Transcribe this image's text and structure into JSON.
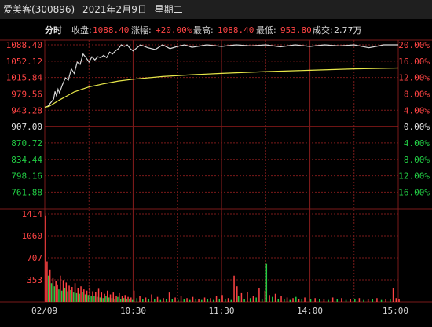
{
  "header": {
    "stock": "爱美客(300896)",
    "date": "2021年2月9日",
    "weekday": "星期二"
  },
  "info_bar": {
    "label": "分时",
    "close_label": "收盘:",
    "close_value": "1088.40",
    "change_label": "涨幅:",
    "change_value": "+20.00%",
    "high_label": "最高:",
    "high_value": "1088.40",
    "low_label": "最低:",
    "low_value": "953.80",
    "volume_label": "成交:",
    "volume_value": "2.77万"
  },
  "colors": {
    "price_line": "#d8d8d8",
    "avg_line": "#e8e84a",
    "up": "#ff4444",
    "down": "#22cc44",
    "neutral": "#e0e0e0",
    "grid": "#7a1a1a"
  },
  "chart_data": {
    "type": "line",
    "prev_close": 907.0,
    "price_axis": {
      "ylim": [
        743.4,
        1088.4
      ],
      "ticks": [
        "1088.40",
        "1052.12",
        "1015.84",
        "979.56",
        "943.28",
        "907.00",
        "870.72",
        "834.44",
        "798.16",
        "761.88"
      ],
      "tick_values": [
        1088.4,
        1052.12,
        1015.84,
        979.56,
        943.28,
        907.0,
        870.72,
        834.44,
        798.16,
        761.88
      ],
      "pct_ticks": [
        "20.00%",
        "16.00%",
        "12.00%",
        "8.00%",
        "4.00%",
        "0.00%",
        "4.00%",
        "8.00%",
        "12.00%",
        "16.00%"
      ]
    },
    "x_ticks": [
      "02/09",
      "10:30",
      "11:30",
      "14:00",
      "15:00"
    ],
    "x_tick_minutes": [
      0,
      60,
      120,
      180,
      240
    ],
    "series": [
      {
        "name": "price",
        "x": [
          0,
          2,
          4,
          6,
          7,
          8,
          9,
          10,
          12,
          14,
          16,
          18,
          20,
          22,
          24,
          26,
          28,
          30,
          32,
          34,
          36,
          38,
          40,
          42,
          44,
          46,
          48,
          50,
          52,
          54,
          56,
          58,
          60,
          65,
          70,
          75,
          80,
          85,
          90,
          95,
          100,
          110,
          120,
          130,
          140,
          150,
          160,
          170,
          180,
          190,
          200,
          210,
          220,
          225,
          230,
          235,
          240
        ],
        "values": [
          950,
          952,
          960,
          968,
          985,
          975,
          990,
          982,
          1000,
          1015,
          1010,
          1035,
          1025,
          1050,
          1045,
          1068,
          1060,
          1050,
          1062,
          1055,
          1062,
          1060,
          1065,
          1060,
          1072,
          1068,
          1075,
          1080,
          1088.4,
          1085,
          1088.4,
          1080,
          1075,
          1088.4,
          1082,
          1078,
          1088.4,
          1080,
          1085,
          1088.4,
          1083,
          1088.4,
          1085,
          1088.4,
          1086,
          1088.4,
          1084,
          1088.4,
          1085,
          1088.4,
          1086,
          1088.4,
          1082,
          1085,
          1088.4,
          1088.4,
          1088.4
        ]
      },
      {
        "name": "avg",
        "x": [
          0,
          3,
          6,
          10,
          15,
          20,
          30,
          40,
          50,
          60,
          80,
          100,
          120,
          150,
          180,
          210,
          240
        ],
        "values": [
          950,
          952,
          958,
          966,
          975,
          984,
          995,
          1002,
          1008,
          1012,
          1018,
          1022,
          1025,
          1029,
          1032,
          1035,
          1037
        ]
      }
    ],
    "volume": {
      "ylim": [
        0,
        1414
      ],
      "ticks": [
        "1414",
        "1060",
        "707",
        "353"
      ],
      "tick_values": [
        1414,
        1060,
        707,
        353
      ],
      "bars": [
        [
          0,
          1380,
          "u"
        ],
        [
          1,
          650,
          "u"
        ],
        [
          2,
          420,
          "d"
        ],
        [
          3,
          520,
          "u"
        ],
        [
          4,
          300,
          "d"
        ],
        [
          5,
          380,
          "u"
        ],
        [
          6,
          250,
          "d"
        ],
        [
          7,
          330,
          "u"
        ],
        [
          8,
          280,
          "u"
        ],
        [
          9,
          200,
          "d"
        ],
        [
          10,
          420,
          "u"
        ],
        [
          11,
          180,
          "d"
        ],
        [
          12,
          350,
          "u"
        ],
        [
          13,
          220,
          "d"
        ],
        [
          14,
          310,
          "u"
        ],
        [
          15,
          170,
          "d"
        ],
        [
          16,
          260,
          "u"
        ],
        [
          17,
          190,
          "d"
        ],
        [
          18,
          240,
          "u"
        ],
        [
          19,
          150,
          "d"
        ],
        [
          20,
          300,
          "u"
        ],
        [
          21,
          140,
          "d"
        ],
        [
          22,
          220,
          "u"
        ],
        [
          23,
          130,
          "d"
        ],
        [
          24,
          250,
          "u"
        ],
        [
          25,
          160,
          "d"
        ],
        [
          26,
          200,
          "u"
        ],
        [
          27,
          120,
          "d"
        ],
        [
          28,
          180,
          "u"
        ],
        [
          29,
          110,
          "d"
        ],
        [
          30,
          230,
          "u"
        ],
        [
          31,
          100,
          "d"
        ],
        [
          32,
          170,
          "u"
        ],
        [
          33,
          90,
          "d"
        ],
        [
          34,
          160,
          "u"
        ],
        [
          35,
          80,
          "d"
        ],
        [
          36,
          210,
          "u"
        ],
        [
          37,
          70,
          "d"
        ],
        [
          38,
          150,
          "u"
        ],
        [
          39,
          60,
          "d"
        ],
        [
          40,
          130,
          "u"
        ],
        [
          41,
          90,
          "d"
        ],
        [
          42,
          180,
          "u"
        ],
        [
          43,
          70,
          "d"
        ],
        [
          44,
          120,
          "u"
        ],
        [
          45,
          60,
          "d"
        ],
        [
          46,
          150,
          "u"
        ],
        [
          47,
          50,
          "d"
        ],
        [
          48,
          100,
          "u"
        ],
        [
          49,
          80,
          "d"
        ],
        [
          50,
          140,
          "u"
        ],
        [
          51,
          40,
          "d"
        ],
        [
          52,
          90,
          "u"
        ],
        [
          53,
          60,
          "d"
        ],
        [
          54,
          110,
          "u"
        ],
        [
          55,
          50,
          "d"
        ],
        [
          56,
          80,
          "u"
        ],
        [
          57,
          40,
          "d"
        ],
        [
          58,
          70,
          "u"
        ],
        [
          59,
          30,
          "d"
        ],
        [
          60,
          180,
          "u"
        ],
        [
          62,
          60,
          "d"
        ],
        [
          64,
          90,
          "u"
        ],
        [
          66,
          40,
          "d"
        ],
        [
          68,
          70,
          "u"
        ],
        [
          70,
          50,
          "d"
        ],
        [
          72,
          120,
          "u"
        ],
        [
          74,
          40,
          "d"
        ],
        [
          76,
          80,
          "u"
        ],
        [
          78,
          30,
          "d"
        ],
        [
          80,
          60,
          "u"
        ],
        [
          82,
          40,
          "d"
        ],
        [
          84,
          150,
          "u"
        ],
        [
          86,
          50,
          "d"
        ],
        [
          88,
          70,
          "u"
        ],
        [
          90,
          30,
          "d"
        ],
        [
          92,
          90,
          "u"
        ],
        [
          94,
          40,
          "d"
        ],
        [
          96,
          60,
          "u"
        ],
        [
          98,
          30,
          "d"
        ],
        [
          100,
          80,
          "u"
        ],
        [
          102,
          40,
          "d"
        ],
        [
          104,
          50,
          "u"
        ],
        [
          106,
          30,
          "d"
        ],
        [
          108,
          70,
          "u"
        ],
        [
          110,
          40,
          "d"
        ],
        [
          112,
          60,
          "u"
        ],
        [
          114,
          30,
          "d"
        ],
        [
          116,
          90,
          "u"
        ],
        [
          118,
          40,
          "d"
        ],
        [
          120,
          110,
          "u"
        ],
        [
          122,
          40,
          "d"
        ],
        [
          124,
          60,
          "u"
        ],
        [
          126,
          30,
          "d"
        ],
        [
          128,
          420,
          "u"
        ],
        [
          130,
          250,
          "u"
        ],
        [
          131,
          90,
          "d"
        ],
        [
          133,
          140,
          "u"
        ],
        [
          135,
          50,
          "d"
        ],
        [
          137,
          160,
          "u"
        ],
        [
          139,
          60,
          "d"
        ],
        [
          141,
          100,
          "u"
        ],
        [
          143,
          70,
          "d"
        ],
        [
          145,
          220,
          "u"
        ],
        [
          147,
          50,
          "d"
        ],
        [
          149,
          180,
          "u"
        ],
        [
          150,
          610,
          "d"
        ],
        [
          152,
          110,
          "u"
        ],
        [
          154,
          80,
          "d"
        ],
        [
          156,
          130,
          "u"
        ],
        [
          158,
          50,
          "d"
        ],
        [
          160,
          90,
          "u"
        ],
        [
          162,
          40,
          "d"
        ],
        [
          164,
          70,
          "u"
        ],
        [
          166,
          30,
          "d"
        ],
        [
          168,
          60,
          "u"
        ],
        [
          170,
          80,
          "d"
        ],
        [
          172,
          50,
          "u"
        ],
        [
          174,
          40,
          "d"
        ],
        [
          176,
          70,
          "u"
        ],
        [
          180,
          50,
          "d"
        ],
        [
          183,
          60,
          "u"
        ],
        [
          186,
          40,
          "d"
        ],
        [
          189,
          50,
          "u"
        ],
        [
          192,
          30,
          "d"
        ],
        [
          195,
          70,
          "u"
        ],
        [
          198,
          40,
          "d"
        ],
        [
          201,
          60,
          "u"
        ],
        [
          204,
          30,
          "d"
        ],
        [
          207,
          50,
          "u"
        ],
        [
          210,
          40,
          "d"
        ],
        [
          213,
          60,
          "u"
        ],
        [
          216,
          30,
          "d"
        ],
        [
          219,
          50,
          "u"
        ],
        [
          222,
          40,
          "d"
        ],
        [
          225,
          60,
          "u"
        ],
        [
          228,
          30,
          "d"
        ],
        [
          231,
          50,
          "u"
        ],
        [
          234,
          40,
          "d"
        ],
        [
          236,
          220,
          "u"
        ],
        [
          238,
          60,
          "u"
        ],
        [
          240,
          50,
          "u"
        ]
      ]
    }
  }
}
